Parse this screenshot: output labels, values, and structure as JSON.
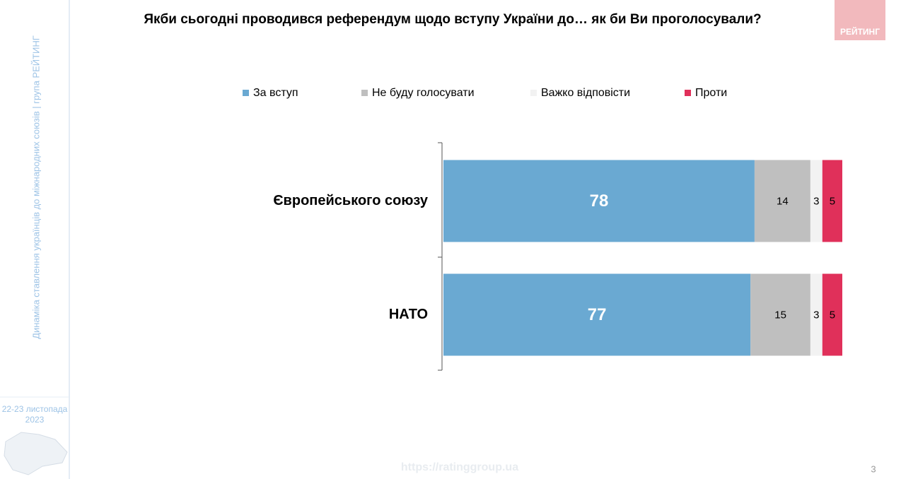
{
  "chart_data": {
    "type": "stacked-barh",
    "title": "Якби сьогодні проводився референдум щодо вступу України до… як би Ви проголосували?",
    "categories": [
      "Європейського союзу",
      "НАТО"
    ],
    "series": [
      {
        "name": "За вступ",
        "color": "#6aa9d2",
        "values": [
          78,
          77
        ]
      },
      {
        "name": "Не буду голосувати",
        "color": "#bfbfbf",
        "values": [
          14,
          15
        ]
      },
      {
        "name": "Важко відповісти",
        "color": "#f2f2f2",
        "values": [
          3,
          3
        ]
      },
      {
        "name": "Проти",
        "color": "#e0305a",
        "values": [
          5,
          5
        ]
      }
    ],
    "xlim": [
      0,
      100
    ],
    "legend": "top"
  },
  "sidebar": {
    "caption": "Динаміка ставлення українців до міжнародних союзів |  група РЕЙТИНГ",
    "date": [
      "22-23 листопада",
      "2023"
    ]
  },
  "logo": "РЕЙТИНГ",
  "footer": {
    "url": "https://ratinggroup.ua",
    "page": "3"
  }
}
